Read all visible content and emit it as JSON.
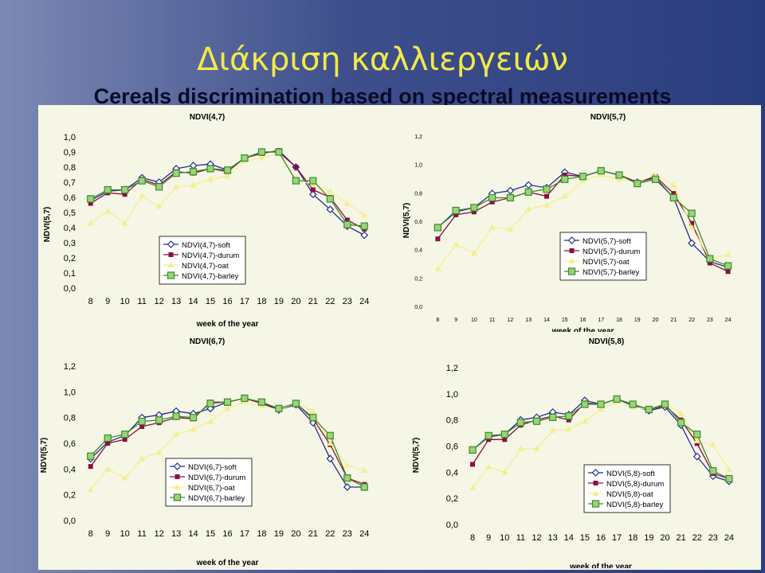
{
  "slide": {
    "title": "Διάκριση καλλιεργειών",
    "subtitle": "Cereals discrimination based on  spectral measurements"
  },
  "colors": {
    "soft": "#1f2f8c",
    "durum": "#8c0f3f",
    "oat": "#f4ef8c",
    "barley": "#3a8c2a"
  },
  "chart_data": [
    {
      "type": "line",
      "title": "NDVI(4,7)",
      "ylabel": "NDVI(5,7)",
      "xlabel": "week of the year",
      "x": [
        8,
        9,
        10,
        11,
        12,
        13,
        14,
        15,
        16,
        17,
        18,
        19,
        20,
        21,
        22,
        23,
        24
      ],
      "ylim": [
        0,
        1
      ],
      "yticks": [
        "0,0",
        "0,1",
        "0,2",
        "0,3",
        "0,4",
        "0,5",
        "0,6",
        "0,7",
        "0,8",
        "0,9",
        "1,0"
      ],
      "legend": "center",
      "series": [
        {
          "name": "NDVI(4,7)-soft",
          "values": [
            0.58,
            0.64,
            0.65,
            0.73,
            0.7,
            0.79,
            0.81,
            0.82,
            0.78,
            0.86,
            0.9,
            0.9,
            0.8,
            0.62,
            0.52,
            0.41,
            0.35
          ]
        },
        {
          "name": "NDVI(4,7)-durum",
          "values": [
            0.56,
            0.63,
            0.62,
            0.72,
            0.68,
            0.77,
            0.76,
            0.79,
            0.77,
            0.86,
            0.89,
            0.91,
            0.8,
            0.65,
            0.6,
            0.45,
            0.39
          ]
        },
        {
          "name": "NDVI(4,7)-oat",
          "values": [
            0.43,
            0.51,
            0.43,
            0.61,
            0.54,
            0.67,
            0.68,
            0.72,
            0.74,
            0.84,
            0.86,
            0.89,
            0.71,
            0.69,
            0.64,
            0.56,
            0.48
          ]
        },
        {
          "name": "NDVI(4,7)-barley",
          "values": [
            0.59,
            0.65,
            0.65,
            0.71,
            0.67,
            0.76,
            0.77,
            0.79,
            0.78,
            0.86,
            0.9,
            0.9,
            0.71,
            0.71,
            0.59,
            0.42,
            0.41
          ]
        }
      ]
    },
    {
      "type": "line",
      "title": "NDVI(5,7)",
      "ylabel": "NDVI(5,7)",
      "xlabel": "week of the year",
      "x": [
        8,
        9,
        10,
        11,
        12,
        13,
        14,
        15,
        16,
        17,
        18,
        19,
        20,
        21,
        22,
        23,
        24
      ],
      "ylim": [
        0,
        1.2
      ],
      "yticks": [
        "0,0",
        "0,2",
        "0,4",
        "0,6",
        "0,8",
        "1,0",
        "1,2"
      ],
      "legend": "right",
      "series": [
        {
          "name": "NDVI(5,7)-soft",
          "values": [
            0.55,
            0.66,
            0.69,
            0.79,
            0.81,
            0.85,
            0.83,
            0.94,
            0.91,
            0.95,
            0.92,
            0.87,
            0.9,
            0.76,
            0.44,
            0.31,
            0.27
          ]
        },
        {
          "name": "NDVI(5,7)-durum",
          "values": [
            0.47,
            0.64,
            0.66,
            0.73,
            0.76,
            0.8,
            0.77,
            0.92,
            0.91,
            0.95,
            0.92,
            0.87,
            0.91,
            0.79,
            0.58,
            0.3,
            0.24
          ]
        },
        {
          "name": "NDVI(5,7)-oat",
          "values": [
            0.26,
            0.43,
            0.37,
            0.55,
            0.54,
            0.68,
            0.71,
            0.77,
            0.88,
            0.92,
            0.89,
            0.87,
            0.92,
            0.85,
            0.55,
            0.33,
            0.36
          ]
        },
        {
          "name": "NDVI(5,7)-barley",
          "values": [
            0.55,
            0.67,
            0.69,
            0.76,
            0.76,
            0.8,
            0.82,
            0.89,
            0.91,
            0.95,
            0.92,
            0.86,
            0.89,
            0.76,
            0.65,
            0.33,
            0.28
          ]
        }
      ]
    },
    {
      "type": "line",
      "title": "NDVI(6,7)",
      "ylabel": "NDVI(5,7)",
      "xlabel": "week of the year",
      "x": [
        8,
        9,
        10,
        11,
        12,
        13,
        14,
        15,
        16,
        17,
        18,
        19,
        20,
        21,
        22,
        23,
        24
      ],
      "ylim": [
        0,
        1.2
      ],
      "yticks": [
        "0,0",
        "0,2",
        "0,4",
        "0,6",
        "0,8",
        "1,0",
        "1,2"
      ],
      "legend": "center",
      "series": [
        {
          "name": "NDVI(6,7)-soft",
          "values": [
            0.48,
            0.61,
            0.66,
            0.8,
            0.82,
            0.85,
            0.83,
            0.87,
            0.92,
            0.95,
            0.91,
            0.86,
            0.9,
            0.76,
            0.48,
            0.26,
            0.26
          ]
        },
        {
          "name": "NDVI(6,7)-durum",
          "values": [
            0.42,
            0.6,
            0.63,
            0.73,
            0.76,
            0.8,
            0.79,
            0.92,
            0.92,
            0.95,
            0.91,
            0.87,
            0.91,
            0.79,
            0.59,
            0.33,
            0.28
          ]
        },
        {
          "name": "NDVI(6,7)-oat",
          "values": [
            0.24,
            0.4,
            0.33,
            0.48,
            0.53,
            0.67,
            0.71,
            0.77,
            0.87,
            0.92,
            0.89,
            0.86,
            0.91,
            0.85,
            0.6,
            0.43,
            0.39
          ]
        },
        {
          "name": "NDVI(6,7)-barley",
          "values": [
            0.5,
            0.64,
            0.67,
            0.77,
            0.78,
            0.81,
            0.8,
            0.91,
            0.92,
            0.95,
            0.92,
            0.87,
            0.91,
            0.8,
            0.66,
            0.33,
            0.26
          ]
        }
      ]
    },
    {
      "type": "line",
      "title": "NDVI(5,8)",
      "ylabel": "NDVI(5,7)",
      "xlabel": "week of the year",
      "x": [
        8,
        9,
        10,
        11,
        12,
        13,
        14,
        15,
        16,
        17,
        18,
        19,
        20,
        21,
        22,
        23,
        24
      ],
      "ylim": [
        0,
        1.2
      ],
      "yticks": [
        "0,0",
        "0,2",
        "0,4",
        "0,6",
        "0,8",
        "1,0",
        "1,2"
      ],
      "legend": "bottom-right",
      "series": [
        {
          "name": "NDVI(5,8)-soft",
          "values": [
            0.57,
            0.67,
            0.69,
            0.8,
            0.82,
            0.86,
            0.84,
            0.95,
            0.92,
            0.96,
            0.91,
            0.87,
            0.9,
            0.76,
            0.52,
            0.37,
            0.33
          ]
        },
        {
          "name": "NDVI(5,8)-durum",
          "values": [
            0.46,
            0.65,
            0.65,
            0.76,
            0.8,
            0.83,
            0.8,
            0.93,
            0.92,
            0.96,
            0.92,
            0.88,
            0.91,
            0.8,
            0.62,
            0.39,
            0.35
          ]
        },
        {
          "name": "NDVI(5,8)-oat",
          "values": [
            0.28,
            0.44,
            0.4,
            0.58,
            0.58,
            0.72,
            0.73,
            0.79,
            0.88,
            0.94,
            0.9,
            0.88,
            0.93,
            0.85,
            0.64,
            0.61,
            0.42
          ]
        },
        {
          "name": "NDVI(5,8)-barley",
          "values": [
            0.57,
            0.68,
            0.69,
            0.78,
            0.79,
            0.82,
            0.83,
            0.92,
            0.92,
            0.96,
            0.92,
            0.88,
            0.92,
            0.78,
            0.69,
            0.41,
            0.35
          ]
        }
      ]
    }
  ]
}
